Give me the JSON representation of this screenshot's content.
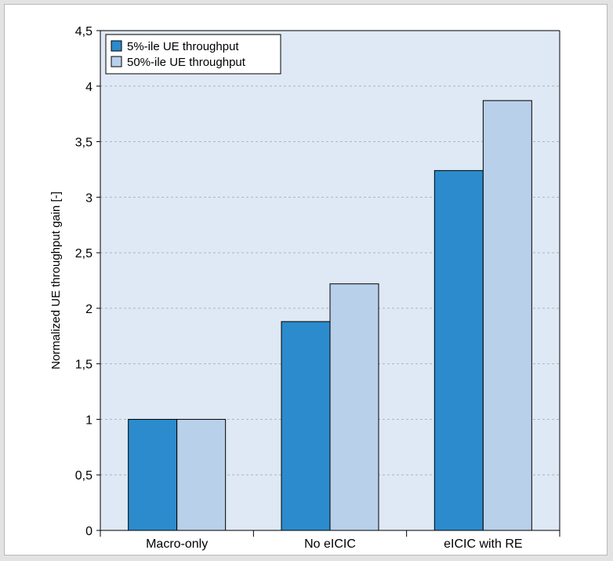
{
  "chart_data": {
    "type": "bar",
    "title": "",
    "xlabel": "",
    "ylabel": "Normalized UE throughput gain [-]",
    "ylim": [
      0,
      4.5
    ],
    "yticks": [
      0,
      0.5,
      1,
      1.5,
      2,
      2.5,
      3,
      3.5,
      4,
      4.5
    ],
    "ytick_labels": [
      "0",
      "0,5",
      "1",
      "1,5",
      "2",
      "2,5",
      "3",
      "3,5",
      "4",
      "4,5"
    ],
    "categories": [
      "Macro-only",
      "No eICIC",
      "eICIC with RE"
    ],
    "series": [
      {
        "name": "5%-ile UE throughput",
        "values": [
          1.0,
          1.88,
          3.24
        ],
        "color": "#2b8bcc"
      },
      {
        "name": "50%-ile UE throughput",
        "values": [
          1.0,
          2.22,
          3.87
        ],
        "color": "#b8d0ea"
      }
    ],
    "grid": true,
    "legend": "top-left",
    "colors": {
      "plot_background": "#dfe9f5",
      "grid": "#a8b6c6",
      "bar_edge": "#000000"
    }
  }
}
